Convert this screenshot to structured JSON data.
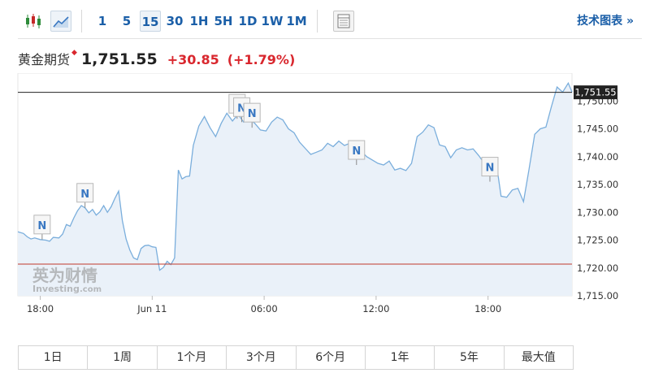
{
  "toolbar": {
    "chart_type_icons": [
      "candlestick-icon",
      "area-chart-icon"
    ],
    "periods": [
      "1",
      "5",
      "15",
      "30",
      "1H",
      "5H",
      "1D",
      "1W",
      "1M"
    ],
    "active_period": "15",
    "table_icon": "table-icon",
    "tech_chart_label": "技术图表 »"
  },
  "quote": {
    "name": "黄金期货",
    "marker": "◆",
    "price": "1,751.55",
    "change": "+30.85",
    "change_pct": "(+1.79%)"
  },
  "range_buttons": [
    "1日",
    "1周",
    "1个月",
    "3个月",
    "6个月",
    "1年",
    "5年",
    "最大值"
  ],
  "watermark": {
    "cn": "英为财情",
    "en": "Investing",
    "suffix": ".com"
  },
  "colors": {
    "line": "#7aaedc",
    "area": "#eaf1f9",
    "accent": "#1b5fa8",
    "up": "#d9272e",
    "ref_line": "#c0392b"
  },
  "chart_data": {
    "type": "area",
    "title": "黄金期货",
    "ylim": [
      1715,
      1755
    ],
    "y_ticks": [
      "1,715.00",
      "1,720.00",
      "1,725.00",
      "1,730.00",
      "1,735.00",
      "1,740.00",
      "1,745.00",
      "1,750.00"
    ],
    "x_tick_labels": [
      "18:00",
      "Jun 11",
      "06:00",
      "12:00",
      "18:00"
    ],
    "x_ticks_at_hours": [
      0,
      6,
      12,
      18,
      24
    ],
    "x_range_hours": [
      -1.2,
      28.5
    ],
    "last_price": 1751.55,
    "last_price_label": "1,751.55",
    "reference_level": 1720.7,
    "grid": false,
    "series": [
      {
        "x": [
          -1.2,
          -0.9,
          -0.7,
          -0.5,
          -0.3,
          0,
          0.3,
          0.5,
          0.7,
          1,
          1.2,
          1.4,
          1.6,
          1.8,
          2,
          2.2,
          2.4,
          2.6,
          2.8,
          3,
          3.2,
          3.4,
          3.6,
          3.8,
          4,
          4.2,
          4.4,
          4.6,
          4.8,
          5,
          5.2,
          5.4,
          5.6,
          5.8,
          6,
          6.2,
          6.4,
          6.6,
          6.8,
          7,
          7.2,
          7.4,
          7.6,
          7.8,
          8,
          8.2,
          8.5,
          8.8,
          9.1,
          9.4,
          9.7,
          10,
          10.3,
          10.6,
          10.9,
          11.2,
          11.5,
          11.8,
          12.1,
          12.4,
          12.7,
          13,
          13.3,
          13.6,
          13.9,
          14.2,
          14.5,
          14.8,
          15.1,
          15.4,
          15.7,
          16,
          16.3,
          16.6,
          16.9,
          17.2,
          17.5,
          17.8,
          18.1,
          18.4,
          18.7,
          19,
          19.3,
          19.6,
          19.9,
          20.2,
          20.5,
          20.8,
          21.1,
          21.4,
          21.7,
          22,
          22.3,
          22.6,
          22.9,
          23.2,
          23.5,
          23.8,
          24.1,
          24.4,
          24.7,
          25,
          25.3,
          25.6,
          25.9,
          26.2,
          26.5,
          26.8,
          27.1,
          27.4,
          27.7,
          28,
          28.3,
          28.5
        ],
        "y": [
          1726.5,
          1726.2,
          1725.6,
          1725.2,
          1725.4,
          1725.1,
          1725.0,
          1724.8,
          1725.5,
          1725.4,
          1726.1,
          1727.8,
          1727.5,
          1729.0,
          1730.3,
          1731.2,
          1730.8,
          1729.9,
          1730.5,
          1729.5,
          1730.1,
          1731.2,
          1730.0,
          1731.0,
          1732.5,
          1733.8,
          1728.5,
          1725.2,
          1723.2,
          1721.8,
          1721.5,
          1723.5,
          1724.0,
          1724.1,
          1723.8,
          1723.7,
          1719.6,
          1720.1,
          1721.2,
          1720.6,
          1721.8,
          1737.6,
          1736.0,
          1736.4,
          1736.5,
          1742.0,
          1745.5,
          1747.2,
          1745.2,
          1743.6,
          1746.0,
          1747.8,
          1746.4,
          1747.6,
          1746.2,
          1746.8,
          1746.0,
          1744.8,
          1744.6,
          1746.2,
          1747.1,
          1746.6,
          1745.0,
          1744.3,
          1742.6,
          1741.5,
          1740.4,
          1740.8,
          1741.2,
          1742.4,
          1741.8,
          1742.8,
          1742.0,
          1742.4,
          1741.6,
          1741.0,
          1740.0,
          1739.4,
          1738.8,
          1738.5,
          1739.2,
          1737.6,
          1737.9,
          1737.5,
          1738.8,
          1743.6,
          1744.4,
          1745.7,
          1745.2,
          1742.1,
          1741.8,
          1739.8,
          1741.2,
          1741.6,
          1741.2,
          1741.4,
          1740.2,
          1738.8,
          1739.5,
          1739.8,
          1732.9,
          1732.7,
          1734.0,
          1734.3,
          1731.9,
          1737.8,
          1744.0,
          1745.0,
          1745.3,
          1749.0,
          1752.5,
          1751.6,
          1753.2,
          1751.6
        ]
      }
    ],
    "news_markers": [
      {
        "x": 0.1,
        "y": 1725.1,
        "label": "N"
      },
      {
        "x": 2.4,
        "y": 1730.8,
        "label": "N"
      },
      {
        "x": 10.55,
        "y": 1746.8,
        "label": "N"
      },
      {
        "x": 10.8,
        "y": 1746.2,
        "label": "N"
      },
      {
        "x": 11.35,
        "y": 1745.2,
        "label": "N"
      },
      {
        "x": 16.95,
        "y": 1738.5,
        "label": "N"
      },
      {
        "x": 24.1,
        "y": 1735.5,
        "label": "N"
      }
    ]
  }
}
